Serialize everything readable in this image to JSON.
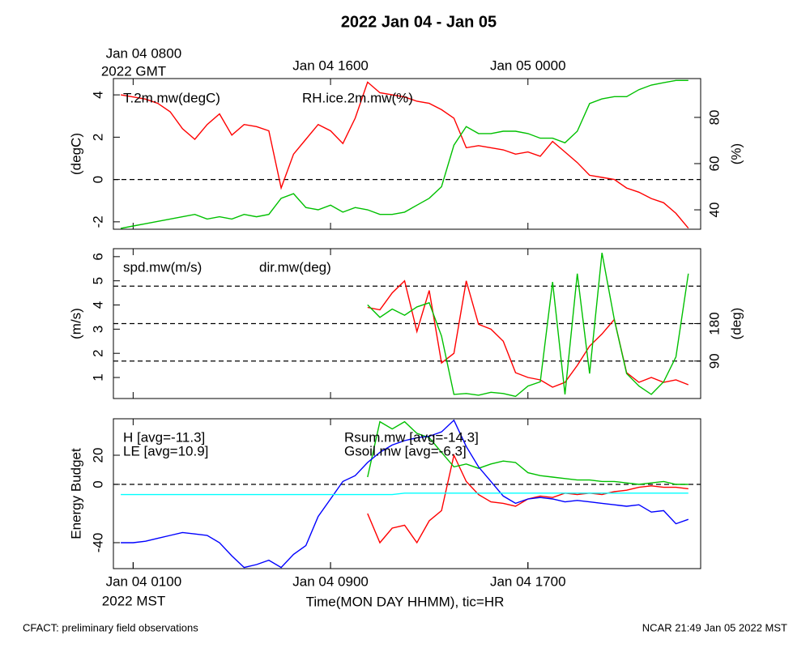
{
  "title": "2022 Jan 04 - Jan 05",
  "footer": {
    "left": "CFACT: preliminary field observations",
    "right": "NCAR 21:49 Jan 05 2022 MST"
  },
  "chart_data": [
    {
      "type": "line",
      "ylabel": "(degC)",
      "y2label": "(%)",
      "x2ticks": [
        {
          "value": 8,
          "label": "Jan 04 0800"
        },
        {
          "value": 16,
          "label": "Jan 04 1600"
        },
        {
          "value": 24,
          "label": "Jan 05 0000"
        }
      ],
      "x2_sublabel": "2022 GMT",
      "xlim": [
        7.2,
        31
      ],
      "ylim": [
        -2.35,
        4.77
      ],
      "yticks": [
        -2,
        0,
        2,
        4
      ],
      "y2lim": [
        31.6,
        96.8
      ],
      "y2ticks": [
        40,
        60,
        80
      ],
      "hlines": [
        0
      ],
      "x": [
        7.5,
        8,
        8.5,
        9,
        9.5,
        10,
        10.5,
        11,
        11.5,
        12,
        12.5,
        13,
        13.5,
        14,
        14.5,
        15,
        15.5,
        16,
        16.5,
        17,
        17.5,
        18,
        18.5,
        19,
        19.5,
        20,
        20.5,
        21,
        21.5,
        22,
        22.5,
        23,
        23.5,
        24,
        24.5,
        25,
        25.5,
        26,
        26.5,
        27,
        27.5,
        28,
        28.5,
        29,
        29.5,
        30,
        30.5
      ],
      "series": [
        {
          "name": "T.2m.mw(degC)",
          "color": "#ff0000",
          "values": [
            4.0,
            3.9,
            3.8,
            3.6,
            3.2,
            2.4,
            1.9,
            2.6,
            3.1,
            2.1,
            2.6,
            2.5,
            2.3,
            -0.4,
            1.2,
            1.9,
            2.6,
            2.3,
            1.7,
            2.9,
            4.6,
            4.1,
            4.0,
            3.9,
            3.7,
            3.6,
            3.3,
            2.9,
            1.5,
            1.6,
            1.5,
            1.4,
            1.2,
            1.3,
            1.1,
            1.8,
            1.3,
            0.8,
            0.2,
            0.1,
            0.0,
            -0.4,
            -0.6,
            -0.9,
            -1.1,
            -1.6,
            -2.3
          ]
        },
        {
          "name": "RH.ice.2m.mw(%)",
          "color": "#00c000",
          "axis": "y2",
          "values": [
            32,
            33,
            34,
            35,
            36,
            37,
            38,
            36,
            37,
            36,
            38,
            37,
            38,
            45,
            47,
            41,
            40,
            42,
            39,
            41,
            40,
            38,
            38,
            39,
            42,
            45,
            50,
            68,
            76,
            73,
            73,
            74,
            74,
            73,
            71,
            71,
            69,
            74,
            86,
            88,
            89,
            89,
            92,
            94,
            95,
            96,
            96
          ]
        }
      ]
    },
    {
      "type": "line",
      "ylabel": "(m/s)",
      "y2label": "(deg)",
      "xlim": [
        7.2,
        31
      ],
      "ylim": [
        0.13,
        6.33
      ],
      "yticks": [
        1,
        2,
        3,
        4,
        5,
        6
      ],
      "y2lim": [
        0,
        360
      ],
      "y2ticks": [
        90,
        180
      ],
      "y2_hlines": [
        90,
        180,
        270
      ],
      "x": [
        7.5,
        8,
        8.5,
        9,
        9.5,
        10,
        10.5,
        11,
        11.5,
        12,
        12.5,
        13,
        13.5,
        14,
        14.5,
        15,
        15.5,
        16,
        16.5,
        17,
        17.5,
        18,
        18.5,
        19,
        19.5,
        20,
        20.5,
        21,
        21.5,
        22,
        22.5,
        23,
        23.5,
        24,
        24.5,
        25,
        25.5,
        26,
        26.5,
        27,
        27.5,
        28,
        28.5,
        29,
        29.5,
        30,
        30.5
      ],
      "series": [
        {
          "name": "spd.mw(m/s)",
          "color": "#ff0000",
          "values": [
            null,
            null,
            null,
            null,
            null,
            null,
            null,
            null,
            null,
            null,
            null,
            null,
            null,
            null,
            null,
            null,
            null,
            null,
            null,
            null,
            3.9,
            3.8,
            4.5,
            5.0,
            2.9,
            4.6,
            1.6,
            2.0,
            5.0,
            3.2,
            3.0,
            2.5,
            1.2,
            1.0,
            0.9,
            0.6,
            0.8,
            1.5,
            2.3,
            2.8,
            3.4,
            1.2,
            0.8,
            1.0,
            0.8,
            0.9,
            0.7
          ]
        },
        {
          "name": "dir.mw(deg)",
          "color": "#00c000",
          "axis": "y2",
          "values": [
            null,
            null,
            null,
            null,
            null,
            null,
            null,
            null,
            null,
            null,
            null,
            null,
            null,
            null,
            null,
            null,
            null,
            null,
            null,
            null,
            225,
            195,
            215,
            200,
            220,
            230,
            150,
            10,
            12,
            8,
            15,
            12,
            5,
            30,
            40,
            280,
            10,
            300,
            60,
            350,
            190,
            60,
            30,
            10,
            40,
            100,
            300
          ]
        }
      ]
    },
    {
      "type": "line",
      "ylabel": "Energy Budget",
      "xticks": [
        {
          "value": 8,
          "label": "Jan 04 0100"
        },
        {
          "value": 16,
          "label": "Jan 04 0900"
        },
        {
          "value": 24,
          "label": "Jan 04 1700"
        }
      ],
      "x_sublabel": "2022 MST",
      "xlabel": "Time(MON DAY HHMM), tic=HR",
      "xlim": [
        7.2,
        31
      ],
      "ylim": [
        -57.8,
        45
      ],
      "yticks": [
        -40,
        0,
        20
      ],
      "hlines": [
        0
      ],
      "x": [
        7.5,
        8,
        8.5,
        9,
        9.5,
        10,
        10.5,
        11,
        11.5,
        12,
        12.5,
        13,
        13.5,
        14,
        14.5,
        15,
        15.5,
        16,
        16.5,
        17,
        17.5,
        18,
        18.5,
        19,
        19.5,
        20,
        20.5,
        21,
        21.5,
        22,
        22.5,
        23,
        23.5,
        24,
        24.5,
        25,
        25.5,
        26,
        26.5,
        27,
        27.5,
        28,
        28.5,
        29,
        29.5,
        30,
        30.5
      ],
      "series": [
        {
          "name": "H [avg=-11.3]",
          "color": "#ff0000",
          "values": [
            null,
            null,
            null,
            null,
            null,
            null,
            null,
            null,
            null,
            null,
            null,
            null,
            null,
            null,
            null,
            null,
            null,
            null,
            null,
            null,
            -20,
            -40,
            -30,
            -28,
            -40,
            -25,
            -18,
            20,
            2,
            -7,
            -12,
            -13,
            -15,
            -10,
            -8,
            -9,
            -6,
            -7,
            -6,
            -7,
            -5,
            -4,
            -2,
            -1,
            -2,
            -2,
            -3
          ]
        },
        {
          "name": "LE [avg=10.9]",
          "color": "#00c000",
          "values": [
            null,
            null,
            null,
            null,
            null,
            null,
            null,
            null,
            null,
            null,
            null,
            null,
            null,
            null,
            null,
            null,
            null,
            null,
            null,
            null,
            5,
            43,
            38,
            43,
            35,
            32,
            22,
            12,
            14,
            11,
            14,
            16,
            15,
            8,
            6,
            5,
            4,
            3,
            3,
            2,
            2,
            1,
            0,
            1,
            2,
            0,
            0
          ]
        },
        {
          "name": "Rsum.mw [avg=-14.3]",
          "color": "#0000ff",
          "values": [
            -40,
            -40,
            -39,
            -37,
            -35,
            -33,
            -34,
            -35,
            -40,
            -49,
            -57,
            -55,
            -52,
            -57,
            -48,
            -42,
            -22,
            -10,
            2,
            6,
            15,
            22,
            27,
            30,
            32,
            33,
            36,
            44,
            26,
            12,
            2,
            -8,
            -13,
            -10,
            -9,
            -10,
            -12,
            -11,
            -12,
            -13,
            -14,
            -15,
            -14,
            -19,
            -18,
            -27,
            -24
          ]
        },
        {
          "name": "Gsoil.mw [avg=-6.3]",
          "color": "#00ffff",
          "values": [
            -7,
            -7,
            -7,
            -7,
            -7,
            -7,
            -7,
            -7,
            -7,
            -7,
            -7,
            -7,
            -7,
            -7,
            -7,
            -7,
            -7,
            -7,
            -7,
            -7,
            -7,
            -7,
            -7,
            -6,
            -6,
            -6,
            -6,
            -6,
            -6,
            -6,
            -6,
            -6,
            -6,
            -6,
            -6,
            -6,
            -6,
            -6,
            -6,
            -6,
            -6,
            -6,
            -6,
            -6,
            -6,
            -6,
            -6
          ]
        }
      ]
    }
  ]
}
